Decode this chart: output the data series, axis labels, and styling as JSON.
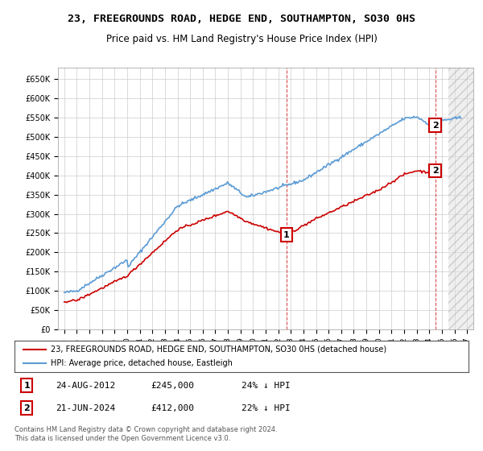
{
  "title": "23, FREEGROUNDS ROAD, HEDGE END, SOUTHAMPTON, SO30 0HS",
  "subtitle": "Price paid vs. HM Land Registry's House Price Index (HPI)",
  "ylabel_ticks": [
    "£0",
    "£50K",
    "£100K",
    "£150K",
    "£200K",
    "£250K",
    "£300K",
    "£350K",
    "£400K",
    "£450K",
    "£500K",
    "£550K",
    "£600K",
    "£650K"
  ],
  "ylim": [
    0,
    680000
  ],
  "xlim_start": 1994.5,
  "xlim_end": 2027.5,
  "hpi_color": "#5b9bd5",
  "price_color": "#cc0000",
  "marker1_date": 2012.65,
  "marker2_date": 2024.47,
  "marker1_price": 245000,
  "marker2_price": 412000,
  "annotation1": "1",
  "annotation2": "2",
  "legend_red": "23, FREEGROUNDS ROAD, HEDGE END, SOUTHAMPTON, SO30 0HS (detached house)",
  "legend_blue": "HPI: Average price, detached house, Eastleigh",
  "table_row1": [
    "1",
    "24-AUG-2012",
    "£245,000",
    "24% ↓ HPI"
  ],
  "table_row2": [
    "2",
    "21-JUN-2024",
    "£412,000",
    "22% ↓ HPI"
  ],
  "footer": "Contains HM Land Registry data © Crown copyright and database right 2024.\nThis data is licensed under the Open Government Licence v3.0.",
  "background_color": "#ffffff",
  "grid_color": "#cccccc",
  "hatch_color": "#cccccc"
}
